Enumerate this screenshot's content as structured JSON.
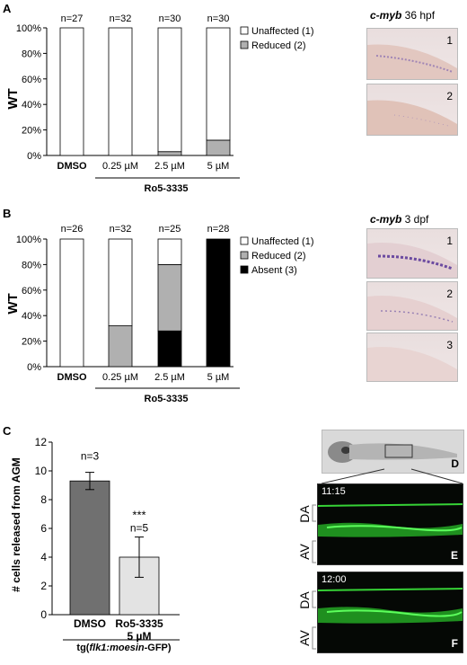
{
  "panels": {
    "A": {
      "letter": "A",
      "ylabel": "WT",
      "yticks": [
        "0%",
        "20%",
        "40%",
        "60%",
        "80%",
        "100%"
      ],
      "categories": [
        "DMSO",
        "0.25 µM",
        "2.5 µM",
        "5 µM"
      ],
      "ns": [
        "n=27",
        "n=32",
        "n=30",
        "n=30"
      ],
      "group_label": "Ro5-3335",
      "legend": [
        {
          "label": "Unaffected (1)",
          "color": "#ffffff"
        },
        {
          "label": "Reduced (2)",
          "color": "#b0b0b0"
        }
      ],
      "image_title_gene": "c-myb",
      "image_title_stage": " 36 hpf",
      "image_nums": [
        "1",
        "2"
      ]
    },
    "B": {
      "letter": "B",
      "ylabel": "WT",
      "yticks": [
        "0%",
        "20%",
        "40%",
        "60%",
        "80%",
        "100%"
      ],
      "categories": [
        "DMSO",
        "0.25 µM",
        "2.5 µM",
        "5 µM"
      ],
      "ns": [
        "n=26",
        "n=32",
        "n=25",
        "n=28"
      ],
      "group_label": "Ro5-3335",
      "legend": [
        {
          "label": "Unaffected (1)",
          "color": "#ffffff"
        },
        {
          "label": "Reduced (2)",
          "color": "#b0b0b0"
        },
        {
          "label": "Absent (3)",
          "color": "#000000"
        }
      ],
      "image_title_gene": "c-myb",
      "image_title_stage": " 3 dpf",
      "image_nums": [
        "1",
        "2",
        "3"
      ]
    },
    "C": {
      "letter": "C",
      "ylabel": "# cells released from AGM",
      "yticks": [
        "0",
        "2",
        "4",
        "6",
        "8",
        "10",
        "12"
      ],
      "categories": [
        "DMSO",
        "Ro5-3335"
      ],
      "category_sub": [
        "",
        "5 µM"
      ],
      "ns": [
        "n=3",
        "n=5"
      ],
      "signif": "***",
      "group_label_pre": "tg(",
      "group_label_gene": "flk1:moesin",
      "group_label_post": "-GFP)"
    },
    "D": {
      "letter": "D"
    },
    "E": {
      "letter": "E",
      "time": "11:15",
      "da": "DA",
      "av": "AV"
    },
    "F": {
      "letter": "F",
      "time": "12:00",
      "da": "DA",
      "av": "AV"
    }
  },
  "chart_data": [
    {
      "type": "bar",
      "stacked": true,
      "panel": "A",
      "categories": [
        "DMSO",
        "0.25 µM",
        "2.5 µM",
        "5 µM"
      ],
      "series": [
        {
          "name": "Reduced (2)",
          "color": "#b0b0b0",
          "values": [
            0,
            0,
            3,
            12
          ]
        },
        {
          "name": "Unaffected (1)",
          "color": "#ffffff",
          "values": [
            100,
            100,
            97,
            88
          ]
        }
      ],
      "ylim": [
        0,
        100
      ],
      "ylabel": "WT",
      "legend": "right"
    },
    {
      "type": "bar",
      "stacked": true,
      "panel": "B",
      "categories": [
        "DMSO",
        "0.25 µM",
        "2.5 µM",
        "5 µM"
      ],
      "series": [
        {
          "name": "Absent (3)",
          "color": "#000000",
          "values": [
            0,
            0,
            28,
            100
          ]
        },
        {
          "name": "Reduced (2)",
          "color": "#b0b0b0",
          "values": [
            0,
            32,
            52,
            0
          ]
        },
        {
          "name": "Unaffected (1)",
          "color": "#ffffff",
          "values": [
            100,
            68,
            20,
            0
          ]
        }
      ],
      "ylim": [
        0,
        100
      ],
      "ylabel": "WT",
      "legend": "right"
    },
    {
      "type": "bar",
      "panel": "C",
      "categories": [
        "DMSO",
        "Ro5-3335 5 µM"
      ],
      "values": [
        9.3,
        4.0
      ],
      "errors": [
        0.6,
        1.4
      ],
      "colors": [
        "#707070",
        "#e3e3e3"
      ],
      "ylim": [
        0,
        12
      ],
      "ylabel": "# cells released from AGM"
    }
  ]
}
